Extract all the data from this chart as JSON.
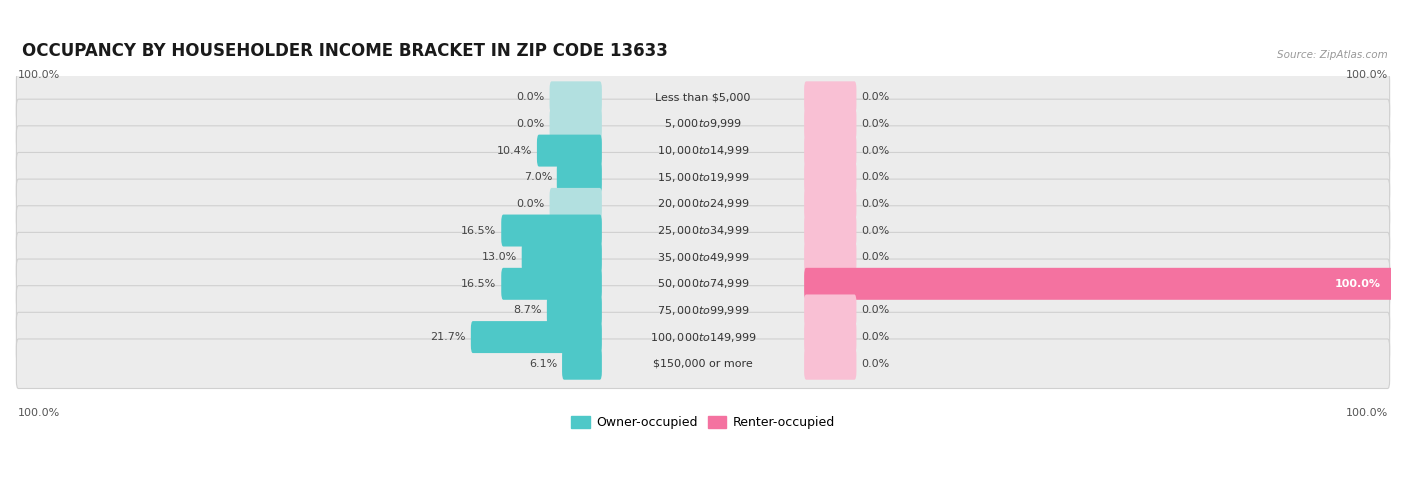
{
  "title": "OCCUPANCY BY HOUSEHOLDER INCOME BRACKET IN ZIP CODE 13633",
  "source": "Source: ZipAtlas.com",
  "categories": [
    "Less than $5,000",
    "$5,000 to $9,999",
    "$10,000 to $14,999",
    "$15,000 to $19,999",
    "$20,000 to $24,999",
    "$25,000 to $34,999",
    "$35,000 to $49,999",
    "$50,000 to $74,999",
    "$75,000 to $99,999",
    "$100,000 to $149,999",
    "$150,000 or more"
  ],
  "owner_values": [
    0.0,
    0.0,
    10.4,
    7.0,
    0.0,
    16.5,
    13.0,
    16.5,
    8.7,
    21.7,
    6.1
  ],
  "renter_values": [
    0.0,
    0.0,
    0.0,
    0.0,
    0.0,
    0.0,
    0.0,
    100.0,
    0.0,
    0.0,
    0.0
  ],
  "owner_color": "#4ec8c8",
  "owner_color_light": "#b2e0e0",
  "renter_color": "#f472a0",
  "renter_color_light": "#f9c0d4",
  "row_bg_color": "#ececec",
  "title_fontsize": 12,
  "label_fontsize": 8,
  "value_fontsize": 8,
  "legend_fontsize": 9,
  "axis_label_fontsize": 8
}
